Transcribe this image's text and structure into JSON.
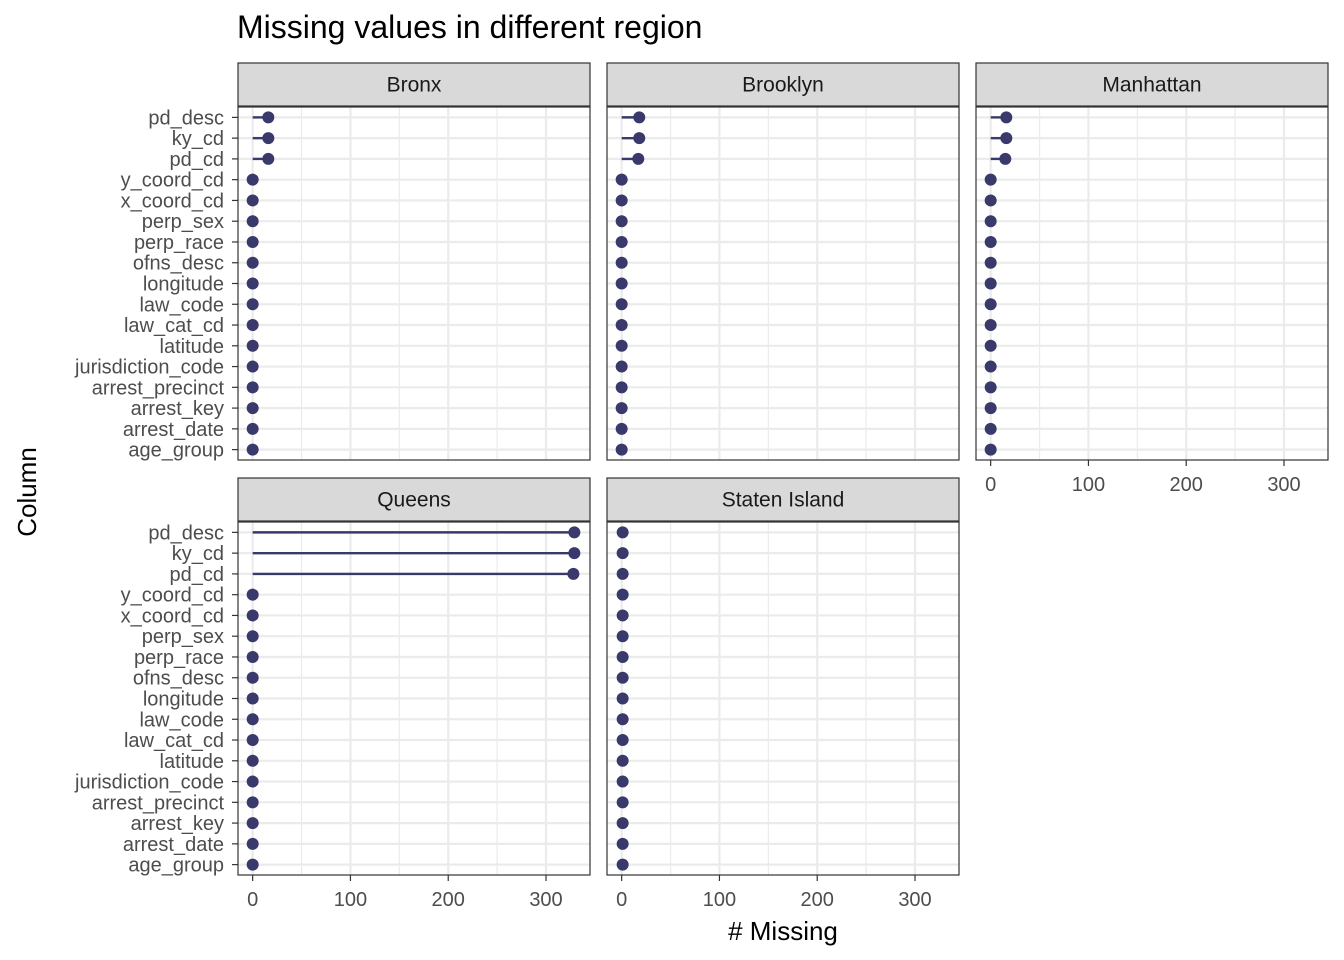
{
  "chart_data": {
    "type": "lollipop",
    "title": "Missing values in different region",
    "xlabel": "# Missing",
    "ylabel": "Column",
    "xlim": [
      -15,
      345
    ],
    "x_ticks": [
      0,
      100,
      200,
      300
    ],
    "x_tick_labels": [
      "0",
      "100",
      "200",
      "300"
    ],
    "grid": true,
    "colors": {
      "point": "#39396b",
      "segment": "#39396b",
      "strip_fill": "#d9d9d9",
      "panel_border": "#333333",
      "grid": "#ebebeb"
    },
    "columns": [
      "pd_desc",
      "ky_cd",
      "pd_cd",
      "y_coord_cd",
      "x_coord_cd",
      "perp_sex",
      "perp_race",
      "ofns_desc",
      "longitude",
      "law_code",
      "law_cat_cd",
      "latitude",
      "jurisdiction_code",
      "arrest_precinct",
      "arrest_key",
      "arrest_date",
      "age_group"
    ],
    "panels": [
      {
        "name": "Bronx",
        "values": [
          16,
          16,
          16,
          0,
          0,
          0,
          0,
          0,
          0,
          0,
          0,
          0,
          0,
          0,
          0,
          0,
          0
        ]
      },
      {
        "name": "Brooklyn",
        "values": [
          18,
          18,
          17,
          0,
          0,
          0,
          0,
          0,
          0,
          0,
          0,
          0,
          0,
          0,
          0,
          0,
          0
        ]
      },
      {
        "name": "Manhattan",
        "values": [
          16,
          16,
          15,
          0,
          0,
          0,
          0,
          0,
          0,
          0,
          0,
          0,
          0,
          0,
          0,
          0,
          0
        ]
      },
      {
        "name": "Queens",
        "values": [
          329,
          329,
          328,
          0,
          0,
          0,
          0,
          0,
          0,
          0,
          0,
          0,
          0,
          0,
          0,
          0,
          0
        ]
      },
      {
        "name": "Staten Island",
        "values": [
          1,
          1,
          1,
          1,
          1,
          1,
          1,
          1,
          1,
          1,
          1,
          1,
          1,
          1,
          1,
          1,
          1
        ]
      }
    ]
  }
}
